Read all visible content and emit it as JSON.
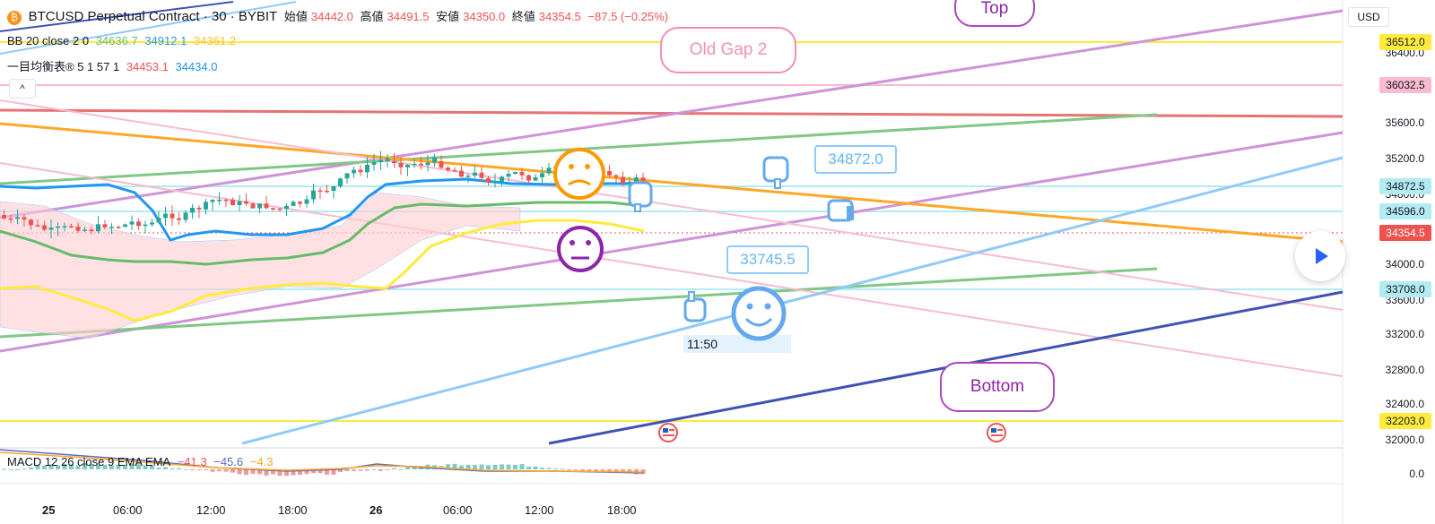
{
  "header": {
    "symbol": "BTCUSD Perpetual Contract · 30 · BYBIT",
    "ohlc": [
      {
        "label": "始値",
        "value": "34442.0"
      },
      {
        "label": "高値",
        "value": "34491.5"
      },
      {
        "label": "安値",
        "value": "34350.0"
      },
      {
        "label": "終値",
        "value": "34354.5"
      }
    ],
    "change": "−87.5 (−0.25%)",
    "bb_label": "BB 20 close 2 0",
    "bb_values": [
      "34636.7",
      "34912.1",
      "34361.2"
    ],
    "ichimoku_label": "一目均衡表® 5 1 57 1",
    "ichimoku_values": [
      "34453.1",
      "34434.0"
    ],
    "collapse_glyph": "^"
  },
  "price_axis": {
    "currency": "USD",
    "ticks": [
      "36400.0",
      "35600.0",
      "35200.0",
      "34800.0",
      "34000.0",
      "33600.0",
      "33200.0",
      "32800.0",
      "32400.0",
      "32000.0"
    ],
    "tags": [
      {
        "value": "36512.0",
        "bg": "#ffeb3b",
        "fg": "#131722"
      },
      {
        "value": "36032.5",
        "bg": "#f8bbd0",
        "fg": "#131722"
      },
      {
        "value": "34872.5",
        "bg": "#b2ebf2",
        "fg": "#131722"
      },
      {
        "value": "34596.0",
        "bg": "#b2ebf2",
        "fg": "#131722"
      },
      {
        "value": "34354.5",
        "bg": "#ef5350",
        "fg": "#ffffff"
      },
      {
        "value": "33708.0",
        "bg": "#b2ebf2",
        "fg": "#131722"
      },
      {
        "value": "32203.0",
        "bg": "#ffeb3b",
        "fg": "#131722"
      }
    ],
    "macd_zero": "0.0"
  },
  "macd": {
    "label": "MACD 12 26 close 9 EMA EMA",
    "values": [
      "−41.3",
      "−45.6",
      "−4.3"
    ]
  },
  "time_axis": [
    "25",
    "06:00",
    "12:00",
    "18:00",
    "26",
    "06:00",
    "12:00",
    "18:00"
  ],
  "annotations": {
    "top": "Top",
    "old_gap": "Old Gap 2",
    "bottom": "Bottom",
    "note_high": "34872.0",
    "note_low": "33745.5",
    "time_note": "11:50"
  },
  "icons": [
    "bitcoin-icon",
    "us-flag-icon",
    "pointing-hand-icon",
    "thumbs-up-icon",
    "smiley-icon",
    "neutral-face-icon",
    "sad-face-icon",
    "play-icon"
  ],
  "colors": {
    "up": "#26a69a",
    "down": "#ef5350",
    "bb_basis": "#2962ff",
    "bb_upper": "#1e88e5",
    "bb_lower": "#ffeb3b",
    "yellow_level": "#ffeb3b",
    "pink_level": "#f8bbd0",
    "red_level": "#e57373",
    "purple": "#ce93d8",
    "green": "#81c784",
    "orange": "#ffa726",
    "blue": "#90caf9",
    "navy": "#3f51b5"
  }
}
